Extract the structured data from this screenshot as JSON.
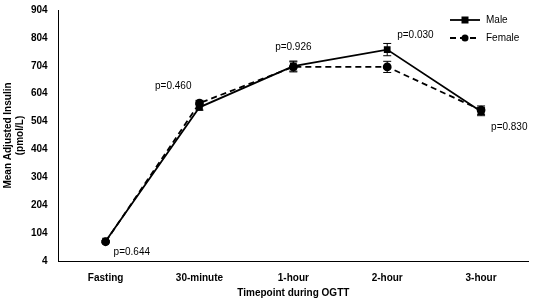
{
  "chart_data": {
    "type": "line",
    "x_label": "Timepoint during OGTT",
    "y_label": [
      "Mean Adjusted Insulin",
      "(pmol/L)"
    ],
    "categories": [
      "Fasting",
      "30-minute",
      "1-hour",
      "2-hour",
      "3-hour"
    ],
    "series": [
      {
        "name": "Male",
        "color": "#000000",
        "marker": "square",
        "line_style": "solid",
        "values": [
          75,
          555,
          703,
          762,
          540
        ],
        "errors": [
          3,
          10,
          18,
          22,
          15
        ]
      },
      {
        "name": "Female",
        "color": "#000000",
        "marker": "circle",
        "line_style": "dashed",
        "values": [
          73,
          570,
          700,
          700,
          545
        ],
        "errors": [
          3,
          10,
          18,
          20,
          15
        ]
      }
    ],
    "ylim": [
      4,
      904
    ],
    "yticks": [
      4,
      104,
      204,
      304,
      404,
      504,
      604,
      704,
      804,
      904
    ],
    "grid": false,
    "legend": "upper right",
    "annotations": [
      {
        "text": "p=0.644",
        "category": "Fasting"
      },
      {
        "text": "p=0.460",
        "category": "30-minute"
      },
      {
        "text": "p=0.926",
        "category": "1-hour"
      },
      {
        "text": "p=0.030",
        "category": "2-hour"
      },
      {
        "text": "p=0.830",
        "category": "3-hour"
      }
    ]
  }
}
